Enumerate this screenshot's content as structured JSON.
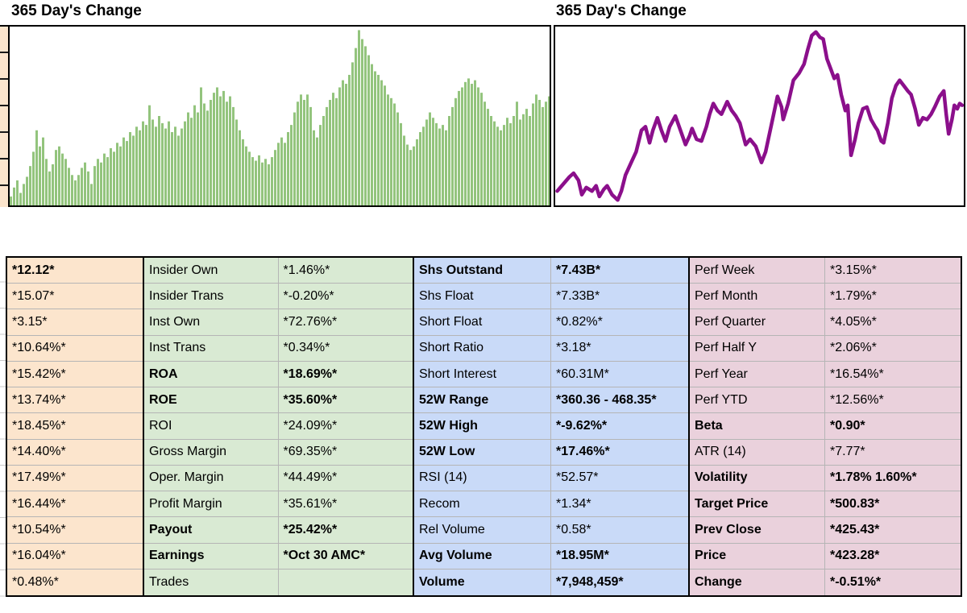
{
  "chart_data": [
    {
      "type": "bar",
      "title": "365 Day's Change",
      "xlabel": "365 daily sessions (axis unlabeled)",
      "ylabel": "(axis unlabeled)",
      "legend": "none",
      "grid": "off",
      "bar_color": "#93c47d",
      "values_normalized_0to1": [
        0.05,
        0.1,
        0.14,
        0.07,
        0.12,
        0.16,
        0.22,
        0.3,
        0.42,
        0.33,
        0.38,
        0.26,
        0.19,
        0.23,
        0.31,
        0.33,
        0.29,
        0.26,
        0.21,
        0.17,
        0.14,
        0.17,
        0.21,
        0.24,
        0.19,
        0.12,
        0.22,
        0.26,
        0.24,
        0.29,
        0.27,
        0.32,
        0.3,
        0.35,
        0.33,
        0.38,
        0.36,
        0.41,
        0.39,
        0.44,
        0.42,
        0.47,
        0.45,
        0.56,
        0.48,
        0.44,
        0.5,
        0.46,
        0.43,
        0.47,
        0.41,
        0.44,
        0.39,
        0.43,
        0.47,
        0.52,
        0.49,
        0.56,
        0.52,
        0.66,
        0.57,
        0.53,
        0.59,
        0.63,
        0.66,
        0.61,
        0.64,
        0.58,
        0.61,
        0.55,
        0.48,
        0.42,
        0.37,
        0.33,
        0.3,
        0.27,
        0.25,
        0.28,
        0.24,
        0.26,
        0.23,
        0.27,
        0.31,
        0.35,
        0.38,
        0.35,
        0.41,
        0.45,
        0.52,
        0.58,
        0.62,
        0.59,
        0.62,
        0.55,
        0.42,
        0.38,
        0.45,
        0.5,
        0.55,
        0.59,
        0.63,
        0.6,
        0.66,
        0.7,
        0.68,
        0.73,
        0.8,
        0.88,
        0.98,
        0.93,
        0.89,
        0.84,
        0.79,
        0.75,
        0.73,
        0.7,
        0.67,
        0.62,
        0.6,
        0.57,
        0.52,
        0.46,
        0.39,
        0.34,
        0.31,
        0.33,
        0.37,
        0.41,
        0.44,
        0.48,
        0.52,
        0.49,
        0.46,
        0.43,
        0.45,
        0.42,
        0.5,
        0.55,
        0.6,
        0.64,
        0.66,
        0.69,
        0.71,
        0.68,
        0.7,
        0.66,
        0.63,
        0.58,
        0.54,
        0.5,
        0.47,
        0.44,
        0.42,
        0.45,
        0.49,
        0.46,
        0.5,
        0.58,
        0.48,
        0.51,
        0.54,
        0.5,
        0.57,
        0.62,
        0.59,
        0.55,
        0.58,
        0.61
      ]
    },
    {
      "type": "line",
      "title": "365 Day's Change",
      "xlabel": "365 daily sessions (axis unlabeled)",
      "ylabel": "(axis unlabeled)",
      "legend": "none",
      "grid": "off",
      "line_color": "#8b0f8b",
      "points_pct_x_and_y_from_top": [
        [
          0.5,
          92
        ],
        [
          2,
          88
        ],
        [
          3.5,
          84
        ],
        [
          4.5,
          82
        ],
        [
          5.7,
          86
        ],
        [
          6.5,
          94
        ],
        [
          7.6,
          90
        ],
        [
          9,
          92
        ],
        [
          10,
          89
        ],
        [
          10.8,
          95
        ],
        [
          11.9,
          91
        ],
        [
          12.7,
          89
        ],
        [
          13.9,
          94
        ],
        [
          15.3,
          97
        ],
        [
          16.2,
          92
        ],
        [
          17.2,
          83
        ],
        [
          18.6,
          76
        ],
        [
          19.8,
          70
        ],
        [
          21.1,
          58
        ],
        [
          22.1,
          56
        ],
        [
          23.1,
          65
        ],
        [
          23.9,
          58
        ],
        [
          25,
          51
        ],
        [
          26,
          58
        ],
        [
          27,
          64
        ],
        [
          28,
          56
        ],
        [
          29.4,
          50
        ],
        [
          30.5,
          57
        ],
        [
          31.9,
          66
        ],
        [
          32.9,
          61
        ],
        [
          33.5,
          57
        ],
        [
          34.6,
          63
        ],
        [
          35.8,
          64
        ],
        [
          37,
          56
        ],
        [
          37.8,
          49
        ],
        [
          38.7,
          43
        ],
        [
          39.7,
          47
        ],
        [
          40.7,
          49
        ],
        [
          42.1,
          42
        ],
        [
          43.2,
          47
        ],
        [
          44.2,
          50
        ],
        [
          45.2,
          54
        ],
        [
          46.6,
          66
        ],
        [
          47.7,
          63
        ],
        [
          49.1,
          67
        ],
        [
          50.5,
          76
        ],
        [
          51.5,
          70
        ],
        [
          53,
          54
        ],
        [
          54.4,
          39
        ],
        [
          55.4,
          45
        ],
        [
          55.8,
          52
        ],
        [
          57,
          43
        ],
        [
          58.3,
          30
        ],
        [
          59.7,
          26
        ],
        [
          60.9,
          21
        ],
        [
          61.8,
          13
        ],
        [
          62.8,
          5
        ],
        [
          63.8,
          3
        ],
        [
          64.8,
          6
        ],
        [
          65.6,
          7
        ],
        [
          66.5,
          18
        ],
        [
          67.5,
          24
        ],
        [
          68.3,
          29
        ],
        [
          69.1,
          27
        ],
        [
          70,
          38
        ],
        [
          71,
          47
        ],
        [
          71.6,
          44
        ],
        [
          72.4,
          72
        ],
        [
          73.4,
          63
        ],
        [
          74.2,
          54
        ],
        [
          75.3,
          46
        ],
        [
          76.3,
          45
        ],
        [
          77.3,
          52
        ],
        [
          78.3,
          56
        ],
        [
          78.9,
          58
        ],
        [
          79.8,
          64
        ],
        [
          80.4,
          65
        ],
        [
          81.4,
          54
        ],
        [
          82.4,
          40
        ],
        [
          83.4,
          33
        ],
        [
          84.3,
          30
        ],
        [
          85.3,
          33
        ],
        [
          86.3,
          36
        ],
        [
          87.1,
          38
        ],
        [
          88.1,
          46
        ],
        [
          89,
          55
        ],
        [
          90,
          51
        ],
        [
          91,
          52
        ],
        [
          92,
          49
        ],
        [
          92.9,
          45
        ],
        [
          94.1,
          39
        ],
        [
          95.1,
          36
        ],
        [
          95.7,
          49
        ],
        [
          96.3,
          60
        ],
        [
          97.1,
          52
        ],
        [
          97.7,
          44
        ],
        [
          98.4,
          46
        ],
        [
          99,
          43
        ],
        [
          99.6,
          44
        ]
      ]
    }
  ],
  "table": {
    "sections": [
      {
        "id": "orange",
        "bg": "#fce5cd",
        "columns": 1,
        "rows": [
          {
            "value": "*12.12*",
            "bold": true
          },
          {
            "value": "*15.07*",
            "bold": false
          },
          {
            "value": "*3.15*",
            "bold": false
          },
          {
            "value": "*10.64%*",
            "bold": false
          },
          {
            "value": "*15.42%*",
            "bold": false
          },
          {
            "value": "*13.74%*",
            "bold": false
          },
          {
            "value": "*18.45%*",
            "bold": false
          },
          {
            "value": "*14.40%*",
            "bold": false
          },
          {
            "value": "*17.49%*",
            "bold": false
          },
          {
            "value": "*16.44%*",
            "bold": false
          },
          {
            "value": "*10.54%*",
            "bold": false
          },
          {
            "value": "*16.04%*",
            "bold": false
          },
          {
            "value": "*0.48%*",
            "bold": false
          }
        ]
      },
      {
        "id": "green",
        "bg": "#d9ead3",
        "columns": 2,
        "rows": [
          {
            "label": "Insider Own",
            "value": "*1.46%*",
            "bold": false
          },
          {
            "label": "Insider Trans",
            "value": "*-0.20%*",
            "bold": false
          },
          {
            "label": "Inst Own",
            "value": "*72.76%*",
            "bold": false
          },
          {
            "label": "Inst Trans",
            "value": "*0.34%*",
            "bold": false
          },
          {
            "label": "ROA",
            "value": "*18.69%*",
            "bold": true
          },
          {
            "label": "ROE",
            "value": "*35.60%*",
            "bold": true
          },
          {
            "label": "ROI",
            "value": "*24.09%*",
            "bold": false
          },
          {
            "label": "Gross Margin",
            "value": "*69.35%*",
            "bold": false
          },
          {
            "label": "Oper. Margin",
            "value": "*44.49%*",
            "bold": false
          },
          {
            "label": "Profit Margin",
            "value": "*35.61%*",
            "bold": false
          },
          {
            "label": "Payout",
            "value": "*25.42%*",
            "bold": true
          },
          {
            "label": "Earnings",
            "value": "*Oct 30 AMC*",
            "bold": true
          },
          {
            "label": "Trades",
            "value": "",
            "bold": false
          }
        ]
      },
      {
        "id": "blue",
        "bg": "#c9daf8",
        "columns": 2,
        "rows": [
          {
            "label": "Shs Outstand",
            "value": "*7.43B*",
            "bold": true
          },
          {
            "label": "Shs Float",
            "value": "*7.33B*",
            "bold": false
          },
          {
            "label": "Short Float",
            "value": "*0.82%*",
            "bold": false
          },
          {
            "label": "Short Ratio",
            "value": "*3.18*",
            "bold": false
          },
          {
            "label": "Short Interest",
            "value": "*60.31M*",
            "bold": false
          },
          {
            "label": "52W Range",
            "value": "*360.36 - 468.35*",
            "bold": true
          },
          {
            "label": "52W High",
            "value": "*-9.62%*",
            "bold": true
          },
          {
            "label": "52W Low",
            "value": "*17.46%*",
            "bold": true
          },
          {
            "label": "RSI (14)",
            "value": "*52.57*",
            "bold": false
          },
          {
            "label": "Recom",
            "value": "*1.34*",
            "bold": false
          },
          {
            "label": "Rel Volume",
            "value": "*0.58*",
            "bold": false
          },
          {
            "label": "Avg Volume",
            "value": "*18.95M*",
            "bold": true
          },
          {
            "label": "Volume",
            "value": "*7,948,459*",
            "bold": true
          }
        ]
      },
      {
        "id": "pink",
        "bg": "#ead1dc",
        "columns": 2,
        "rows": [
          {
            "label": "Perf Week",
            "value": "*3.15%*",
            "bold": false
          },
          {
            "label": "Perf Month",
            "value": "*1.79%*",
            "bold": false
          },
          {
            "label": "Perf Quarter",
            "value": "*4.05%*",
            "bold": false
          },
          {
            "label": "Perf Half Y",
            "value": "*2.06%*",
            "bold": false
          },
          {
            "label": "Perf Year",
            "value": "*16.54%*",
            "bold": false
          },
          {
            "label": "Perf YTD",
            "value": "*12.56%*",
            "bold": false
          },
          {
            "label": "Beta",
            "value": "*0.90*",
            "bold": true
          },
          {
            "label": "ATR (14)",
            "value": "*7.77*",
            "bold": false
          },
          {
            "label": "Volatility",
            "value": "*1.78% 1.60%*",
            "bold": true
          },
          {
            "label": "Target Price",
            "value": "*500.83*",
            "bold": true
          },
          {
            "label": "Prev Close",
            "value": "*425.43*",
            "bold": true
          },
          {
            "label": "Price",
            "value": "*423.28*",
            "bold": true
          },
          {
            "label": "Change",
            "value": "*-0.51%*",
            "bold": true
          }
        ]
      }
    ]
  }
}
